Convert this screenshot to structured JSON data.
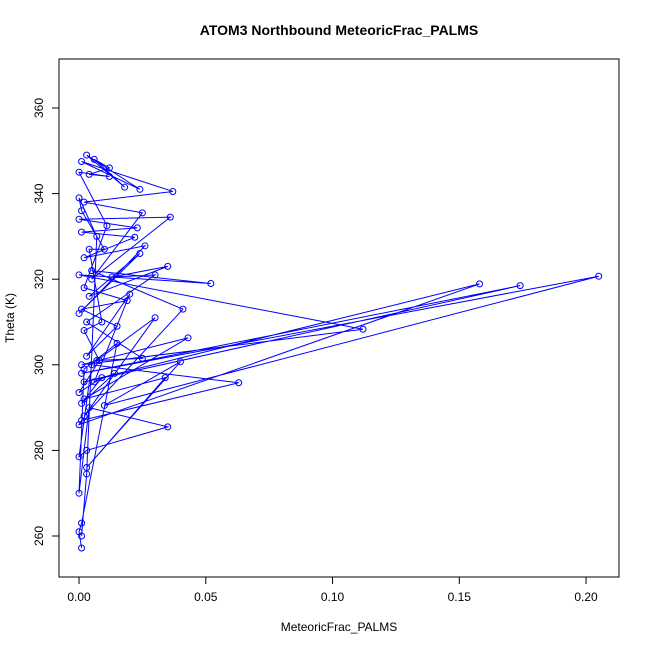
{
  "chart_data": {
    "type": "scatter",
    "title": "ATOM3 Northbound MeteoricFrac_PALMS",
    "x_label": "MeteoricFrac_PALMS",
    "y_label": "Theta (K)",
    "color": "#0000ff",
    "lines": true,
    "xlim": [
      -0.0079,
      0.213
    ],
    "ylim": [
      250.42,
      371.45
    ],
    "xticks": [
      {
        "value": 0,
        "label": "0.00"
      },
      {
        "value": 0.05,
        "label": "0.05"
      },
      {
        "value": 0.1,
        "label": "0.10"
      },
      {
        "value": 0.15,
        "label": "0.15"
      },
      {
        "value": 0.2,
        "label": "0.20"
      }
    ],
    "yticks": [
      260,
      280,
      300,
      320,
      340,
      360
    ],
    "x": [
      0.001,
      0.0,
      0.001,
      0.015,
      0.002,
      0.0,
      0.004,
      0.035,
      0.003,
      0.0,
      0.005,
      0.063,
      0.001,
      0.0,
      0.158,
      0.002,
      0.174,
      0.001,
      0.205,
      0.01,
      0.04,
      0.003,
      0.034,
      0.002,
      0.043,
      0.001,
      0.112,
      0.0,
      0.052,
      0.005,
      0.041,
      0.002,
      0.03,
      0.007,
      0.025,
      0.003,
      0.03,
      0.013,
      0.035,
      0.004,
      0.024,
      0.0,
      0.026,
      0.002,
      0.022,
      0.001,
      0.023,
      0.0,
      0.036,
      0.005,
      0.025,
      0.002,
      0.037,
      0.001,
      0.024,
      0.003,
      0.018,
      0.006,
      0.012,
      0.004,
      0.012,
      0.0,
      0.011,
      0.002,
      0.019,
      0.001,
      0.015,
      0.003,
      0.02,
      0.006,
      0.014,
      0.001,
      0.009,
      0.0,
      0.008,
      0.002,
      0.009,
      0.004,
      0.01,
      0.001,
      0.0,
      0.007,
      0.003,
      0.001
    ],
    "values": [
      257.2,
      261,
      263,
      305,
      299,
      270,
      290,
      285.5,
      280,
      278.5,
      300,
      295.8,
      287,
      286,
      318.9,
      296,
      318.5,
      298,
      320.7,
      290.5,
      300.7,
      276,
      297,
      292,
      306.3,
      300,
      308.3,
      321,
      319,
      322,
      313,
      288,
      311,
      301,
      301.5,
      310,
      321,
      320.5,
      323,
      316,
      326,
      312,
      327.8,
      325,
      329.8,
      331,
      332,
      334,
      334.5,
      320,
      335.5,
      338,
      340.5,
      347.5,
      341,
      349,
      341.5,
      348,
      346,
      344.5,
      344,
      345,
      332.5,
      318,
      315,
      313,
      309,
      302,
      316.5,
      296,
      298,
      291,
      297,
      293.5,
      301,
      308,
      310,
      327,
      327,
      336,
      339,
      330,
      274.5,
      260
    ]
  }
}
